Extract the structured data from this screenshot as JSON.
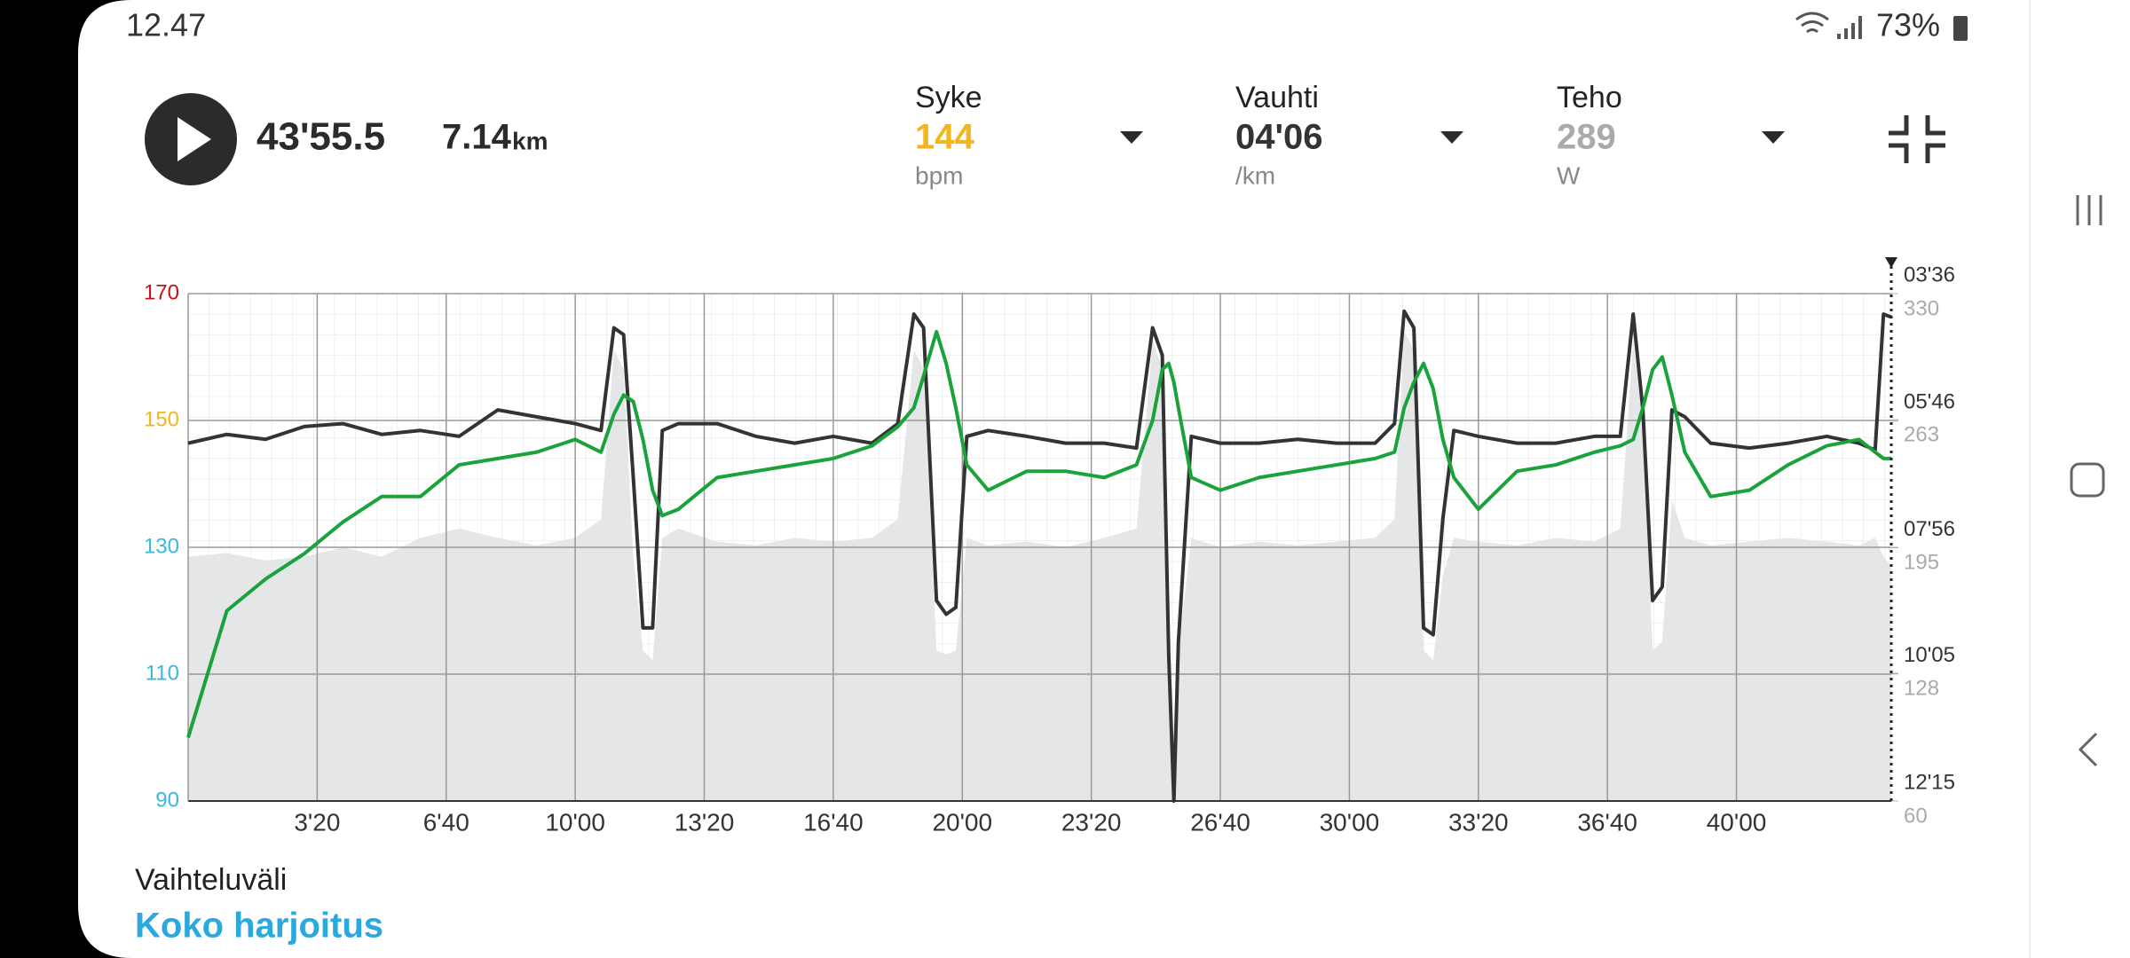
{
  "status": {
    "time": "12.47",
    "battery": "73%"
  },
  "workout": {
    "duration": "43'55.5",
    "distance": "7.14",
    "distance_unit": "km"
  },
  "metrics": [
    {
      "label": "Syke",
      "value": "144",
      "unit": "bpm",
      "color": "#f2b51e"
    },
    {
      "label": "Vauhti",
      "value": "04'06",
      "unit": "/km",
      "color": "#333333"
    },
    {
      "label": "Teho",
      "value": "289",
      "unit": "W",
      "color": "#aaaaaa"
    }
  ],
  "footer": {
    "range_label": "Vaihteluväli",
    "range_value": "Koko harjoitus"
  },
  "chart_data": {
    "type": "line",
    "x": [
      0,
      60,
      120,
      180,
      240,
      300,
      360,
      420,
      480,
      540,
      600,
      640,
      660,
      675,
      690,
      705,
      720,
      735,
      760,
      820,
      880,
      940,
      1000,
      1060,
      1100,
      1125,
      1140,
      1160,
      1175,
      1190,
      1207,
      1240,
      1300,
      1360,
      1420,
      1470,
      1495,
      1510,
      1520,
      1528,
      1535,
      1555,
      1600,
      1660,
      1720,
      1780,
      1840,
      1870,
      1885,
      1900,
      1915,
      1930,
      1945,
      1962,
      2000,
      2060,
      2120,
      2180,
      2220,
      2240,
      2255,
      2270,
      2285,
      2300,
      2320,
      2360,
      2420,
      2480,
      2540,
      2590,
      2615,
      2628,
      2640
    ],
    "series": [
      {
        "color": "#1aa33a",
        "values": [
          100,
          120,
          125,
          129,
          134,
          138,
          138,
          143,
          144,
          145,
          147,
          145,
          151,
          154,
          153,
          147,
          139,
          135,
          136,
          141,
          142,
          143,
          144,
          146,
          149,
          152,
          157,
          164,
          159,
          152,
          143,
          139,
          142,
          142,
          141,
          143,
          150,
          158,
          159,
          156,
          152,
          141,
          139,
          141,
          142,
          143,
          144,
          145,
          152,
          156,
          159,
          155,
          147,
          141,
          136,
          142,
          143,
          145,
          146,
          147,
          152,
          158,
          160,
          154,
          145,
          138,
          139,
          143,
          146,
          147,
          145,
          144,
          144
        ]
      },
      {
        "color": "#333333",
        "axis": "y2",
        "values": [
          369,
          360,
          365,
          352,
          349,
          360,
          356,
          362,
          335,
          342,
          349,
          356,
          251,
          258,
          404,
          558,
          558,
          356,
          349,
          349,
          362,
          369,
          362,
          369,
          349,
          237,
          251,
          530,
          544,
          537,
          362,
          356,
          362,
          369,
          369,
          374,
          251,
          279,
          586,
          735,
          572,
          362,
          369,
          369,
          365,
          369,
          369,
          349,
          234,
          251,
          558,
          565,
          446,
          356,
          362,
          369,
          369,
          362,
          362,
          237,
          335,
          530,
          516,
          335,
          342,
          369,
          374,
          369,
          362,
          369,
          376,
          237,
          240
        ]
      },
      {
        "color": "#e4e6e8",
        "axis": "y3",
        "values": [
          190,
          192,
          188,
          190,
          195,
          190,
          200,
          205,
          200,
          196,
          200,
          210,
          300,
          290,
          190,
          140,
          135,
          200,
          205,
          198,
          196,
          200,
          198,
          200,
          210,
          300,
          290,
          140,
          138,
          140,
          200,
          196,
          198,
          195,
          200,
          205,
          305,
          290,
          120,
          95,
          140,
          200,
          195,
          198,
          196,
          198,
          200,
          210,
          310,
          300,
          140,
          135,
          180,
          200,
          198,
          196,
          200,
          198,
          205,
          305,
          260,
          140,
          145,
          220,
          200,
          196,
          198,
          200,
          198,
          196,
          200,
          190,
          185
        ]
      }
    ],
    "xlim": [
      0,
      2640
    ],
    "xticks": [
      {
        "value": 200,
        "label": "3'20"
      },
      {
        "value": 400,
        "label": "6'40"
      },
      {
        "value": 600,
        "label": "10'00"
      },
      {
        "value": 800,
        "label": "13'20"
      },
      {
        "value": 1000,
        "label": "16'40"
      },
      {
        "value": 1200,
        "label": "20'00"
      },
      {
        "value": 1400,
        "label": "23'20"
      },
      {
        "value": 1600,
        "label": "26'40"
      },
      {
        "value": 1800,
        "label": "30'00"
      },
      {
        "value": 2000,
        "label": "33'20"
      },
      {
        "value": 2200,
        "label": "36'40"
      },
      {
        "value": 2400,
        "label": "40'00"
      }
    ],
    "ylim": [
      90,
      170
    ],
    "yticks": [
      90,
      110,
      130,
      150,
      170
    ],
    "ytick_colors": [
      "#3db6dc",
      "#3db6dc",
      "#3db6dc",
      "#f2b51e",
      "#c0141a"
    ],
    "y2lim": [
      735,
      216
    ],
    "y2ticks": [
      {
        "value": 216,
        "label": "03'36"
      },
      {
        "value": 346,
        "label": "05'46"
      },
      {
        "value": 476,
        "label": "07'56"
      },
      {
        "value": 605,
        "label": "10'05"
      },
      {
        "value": 735,
        "label": "12'15"
      }
    ],
    "y3lim": [
      60,
      330
    ],
    "y3ticks": [
      60,
      128,
      195,
      263,
      330
    ],
    "grid": true
  }
}
